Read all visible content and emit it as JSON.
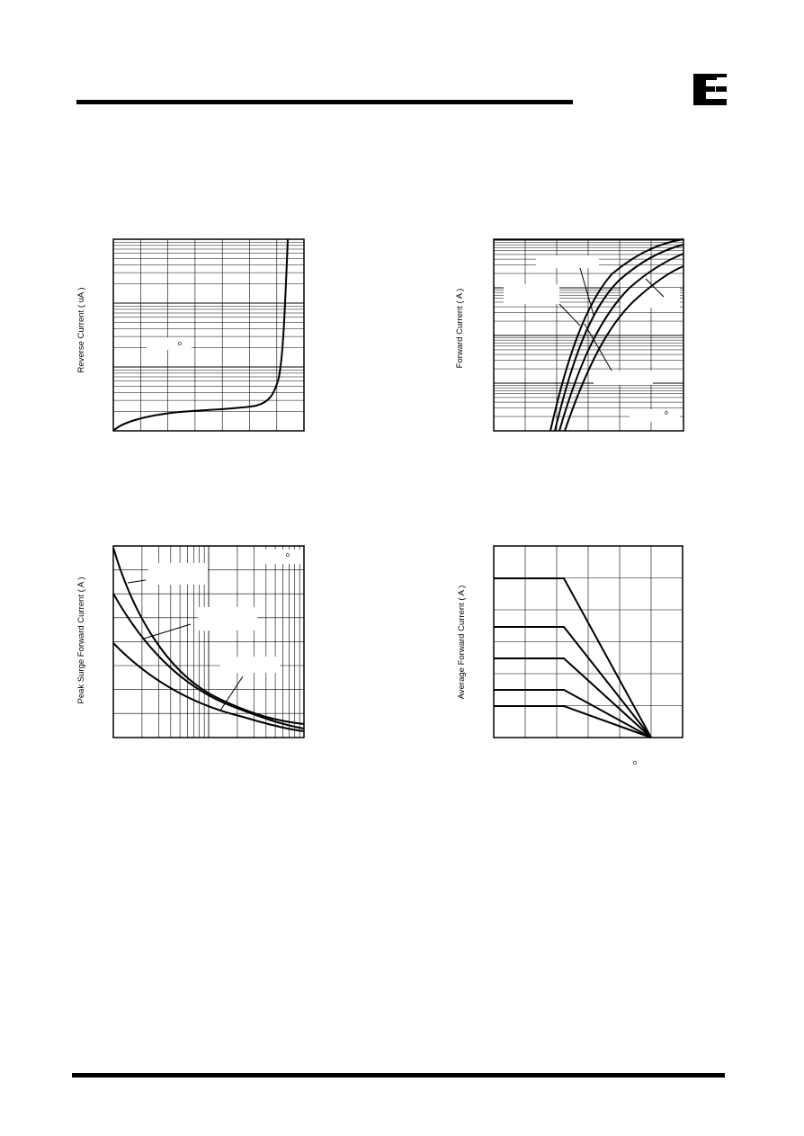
{
  "charts": [
    {
      "y_label": "Reverse Current ( uA )",
      "note": "o"
    },
    {
      "y_label": "Forward Current ( A )",
      "note": "o"
    },
    {
      "y_label": "Peak Surge Forward Current ( A )",
      "note": "o"
    },
    {
      "y_label": "Average Forward Current ( A )",
      "note": "o"
    }
  ]
}
